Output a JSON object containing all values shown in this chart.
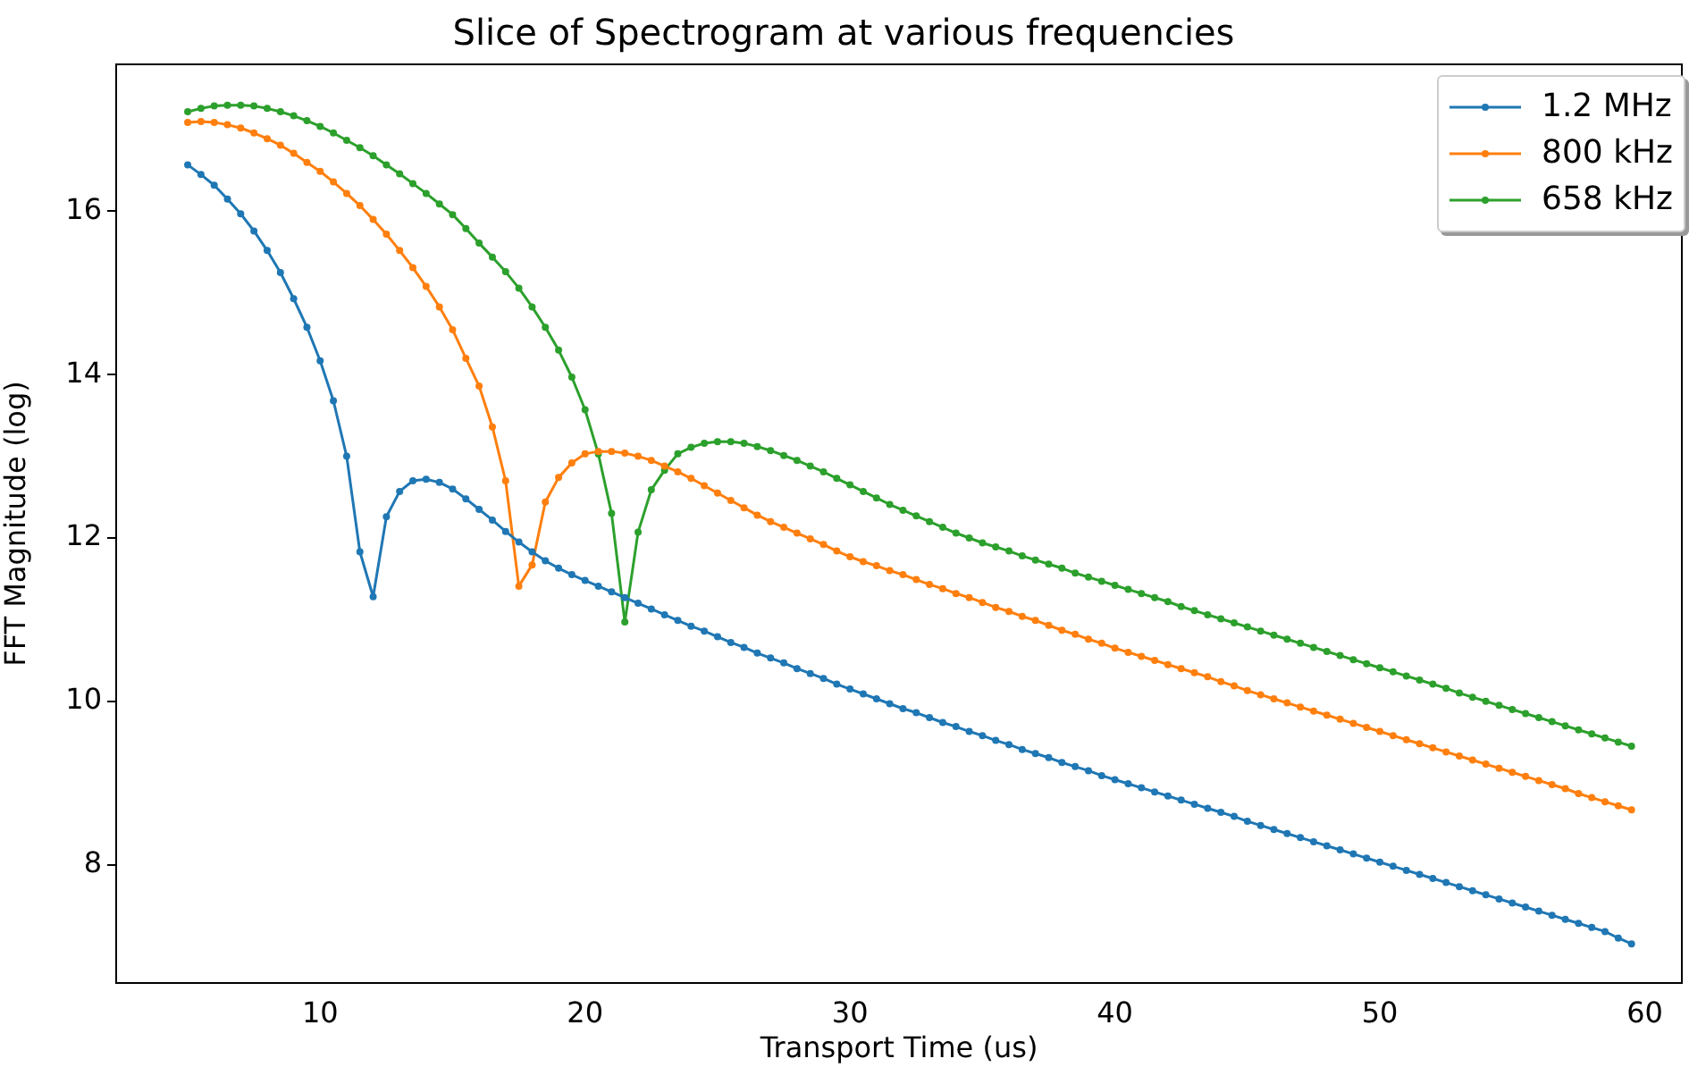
{
  "chart_data": {
    "type": "line",
    "title": "Slice of Spectrogram at various frequencies",
    "xlabel": "Transport Time (us)",
    "ylabel": "FFT Magnitude (log)",
    "x": [
      5,
      5.5,
      6,
      6.5,
      7,
      7.5,
      8,
      8.5,
      9,
      9.5,
      10,
      10.5,
      11,
      11.5,
      12,
      12.5,
      13,
      13.5,
      14,
      14.5,
      15,
      15.5,
      16,
      16.5,
      17,
      17.5,
      18,
      18.5,
      19,
      19.5,
      20,
      20.5,
      21,
      21.5,
      22,
      22.5,
      23,
      23.5,
      24,
      24.5,
      25,
      25.5,
      26,
      26.5,
      27,
      27.5,
      28,
      28.5,
      29,
      29.5,
      30,
      30.5,
      31,
      31.5,
      32,
      32.5,
      33,
      33.5,
      34,
      34.5,
      35,
      35.5,
      36,
      36.5,
      37,
      37.5,
      38,
      38.5,
      39,
      39.5,
      40,
      40.5,
      41,
      41.5,
      42,
      42.5,
      43,
      43.5,
      44,
      44.5,
      45,
      45.5,
      46,
      46.5,
      47,
      47.5,
      48,
      48.5,
      49,
      49.5,
      50,
      50.5,
      51,
      51.5,
      52,
      52.5,
      53,
      53.5,
      54,
      54.5,
      55,
      55.5,
      56,
      56.5,
      57,
      57.5,
      58,
      58.5,
      59,
      59.5
    ],
    "series": [
      {
        "name": "1.2 MHz",
        "color": "#1f77b4",
        "values": [
          16.57,
          16.45,
          16.32,
          16.15,
          15.97,
          15.76,
          15.52,
          15.25,
          14.93,
          14.58,
          14.17,
          13.68,
          13.0,
          11.83,
          11.28,
          12.26,
          12.57,
          12.7,
          12.72,
          12.68,
          12.6,
          12.48,
          12.35,
          12.22,
          12.08,
          11.95,
          11.83,
          11.72,
          11.63,
          11.55,
          11.48,
          11.41,
          11.34,
          11.27,
          11.2,
          11.13,
          11.06,
          10.99,
          10.92,
          10.86,
          10.79,
          10.72,
          10.66,
          10.59,
          10.53,
          10.47,
          10.4,
          10.34,
          10.28,
          10.21,
          10.15,
          10.09,
          10.03,
          9.97,
          9.91,
          9.86,
          9.8,
          9.74,
          9.69,
          9.63,
          9.58,
          9.52,
          9.47,
          9.41,
          9.36,
          9.31,
          9.25,
          9.2,
          9.15,
          9.09,
          9.04,
          8.99,
          8.94,
          8.89,
          8.84,
          8.79,
          8.74,
          8.69,
          8.64,
          8.59,
          8.53,
          8.48,
          8.43,
          8.38,
          8.33,
          8.28,
          8.23,
          8.18,
          8.13,
          8.08,
          8.03,
          7.98,
          7.93,
          7.88,
          7.83,
          7.78,
          7.73,
          7.68,
          7.63,
          7.58,
          7.53,
          7.48,
          7.43,
          7.38,
          7.33,
          7.28,
          7.23,
          7.18,
          7.1,
          7.03
        ]
      },
      {
        "name": "800 kHz",
        "color": "#ff7f0e",
        "values": [
          17.09,
          17.1,
          17.09,
          17.06,
          17.02,
          16.96,
          16.89,
          16.81,
          16.71,
          16.6,
          16.49,
          16.36,
          16.22,
          16.07,
          15.9,
          15.72,
          15.52,
          15.31,
          15.08,
          14.83,
          14.55,
          14.2,
          13.86,
          13.36,
          12.7,
          11.41,
          11.67,
          12.44,
          12.74,
          12.92,
          13.03,
          13.06,
          13.06,
          13.04,
          13.0,
          12.95,
          12.88,
          12.81,
          12.73,
          12.64,
          12.55,
          12.46,
          12.37,
          12.28,
          12.2,
          12.13,
          12.06,
          11.99,
          11.92,
          11.84,
          11.77,
          11.71,
          11.66,
          11.6,
          11.55,
          11.49,
          11.43,
          11.38,
          11.32,
          11.27,
          11.21,
          11.15,
          11.1,
          11.04,
          10.99,
          10.93,
          10.87,
          10.82,
          10.76,
          10.71,
          10.65,
          10.6,
          10.55,
          10.5,
          10.45,
          10.4,
          10.35,
          10.3,
          10.24,
          10.19,
          10.13,
          10.08,
          10.03,
          9.98,
          9.93,
          9.88,
          9.83,
          9.78,
          9.73,
          9.68,
          9.63,
          9.58,
          9.53,
          9.48,
          9.43,
          9.38,
          9.33,
          9.28,
          9.23,
          9.18,
          9.13,
          9.08,
          9.03,
          8.98,
          8.93,
          8.87,
          8.82,
          8.77,
          8.72,
          8.67
        ]
      },
      {
        "name": "658 kHz",
        "color": "#2ca02c",
        "values": [
          17.22,
          17.26,
          17.29,
          17.3,
          17.3,
          17.29,
          17.26,
          17.22,
          17.17,
          17.11,
          17.04,
          16.96,
          16.87,
          16.78,
          16.68,
          16.57,
          16.46,
          16.34,
          16.22,
          16.09,
          15.96,
          15.79,
          15.61,
          15.44,
          15.26,
          15.06,
          14.83,
          14.58,
          14.3,
          13.97,
          13.57,
          13.03,
          12.3,
          10.97,
          12.07,
          12.59,
          12.83,
          13.03,
          13.11,
          13.16,
          13.18,
          13.18,
          13.16,
          13.12,
          13.07,
          13.01,
          12.95,
          12.88,
          12.81,
          12.73,
          12.65,
          12.57,
          12.49,
          12.41,
          12.34,
          12.27,
          12.2,
          12.13,
          12.06,
          12.0,
          11.94,
          11.89,
          11.84,
          11.78,
          11.73,
          11.68,
          11.63,
          11.57,
          11.52,
          11.47,
          11.42,
          11.37,
          11.32,
          11.27,
          11.22,
          11.16,
          11.11,
          11.06,
          11.01,
          10.96,
          10.91,
          10.86,
          10.81,
          10.76,
          10.71,
          10.66,
          10.61,
          10.56,
          10.51,
          10.46,
          10.41,
          10.36,
          10.31,
          10.26,
          10.21,
          10.16,
          10.1,
          10.05,
          10.0,
          9.95,
          9.9,
          9.85,
          9.8,
          9.75,
          9.7,
          9.65,
          9.6,
          9.55,
          9.5,
          9.45
        ]
      }
    ],
    "xlim": [
      2.3,
      61.4
    ],
    "ylim": [
      6.55,
      17.8
    ],
    "xticks": [
      10,
      20,
      30,
      40,
      50,
      60
    ],
    "yticks": [
      8,
      10,
      12,
      14,
      16
    ],
    "grid": false,
    "legend": "top right",
    "marker": "circle",
    "line_style": "solid"
  }
}
